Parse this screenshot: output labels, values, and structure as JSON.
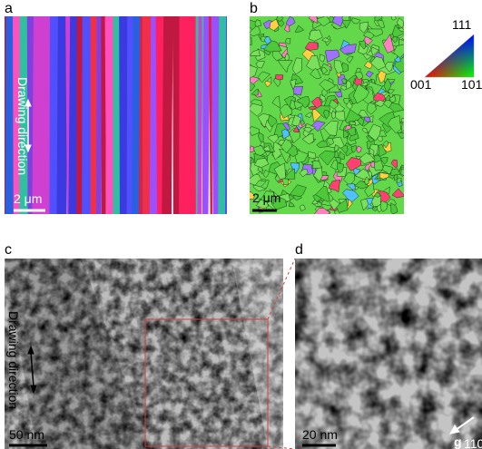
{
  "panels": [
    {
      "label": "a",
      "annotation": "Drawing direction",
      "scale_bar": "2 μm"
    },
    {
      "label": "b",
      "scale_bar": "2 μm"
    },
    {
      "label": "c",
      "annotation": "Drawing direction",
      "scale_bar": "50 nm"
    },
    {
      "label": "d",
      "scale_bar": "20 nm",
      "vector": "g",
      "vector_subscript": "110"
    }
  ],
  "color_key": {
    "top": "111",
    "left": "001",
    "right": "101"
  }
}
